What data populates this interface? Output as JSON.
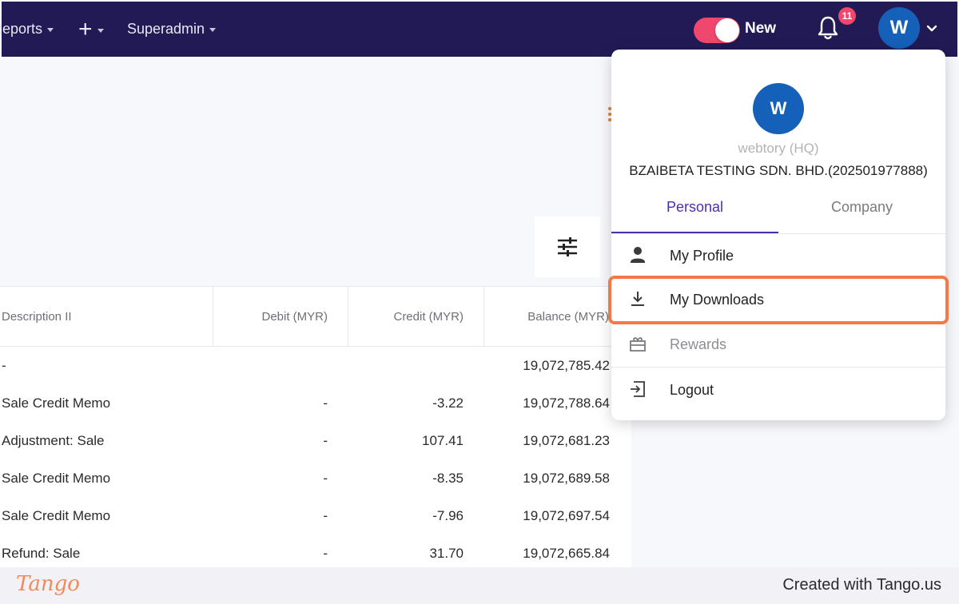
{
  "nav": {
    "items": [
      {
        "label": "Reports"
      },
      {
        "label": "+"
      },
      {
        "label": "Superadmin"
      }
    ],
    "toggle_label": "New",
    "notification_count": "11",
    "avatar_initial": "W"
  },
  "table": {
    "columns": [
      "Description II",
      "Debit (MYR)",
      "Credit (MYR)",
      "Balance (MYR)"
    ],
    "rows": [
      {
        "description": "-",
        "debit": "",
        "credit": "",
        "balance": "19,072,785.42"
      },
      {
        "description": "Sale Credit Memo",
        "debit": "-",
        "credit": "-3.22",
        "balance": "19,072,788.64"
      },
      {
        "description": "Adjustment: Sale",
        "debit": "-",
        "credit": "107.41",
        "balance": "19,072,681.23"
      },
      {
        "description": "Sale Credit Memo",
        "debit": "-",
        "credit": "-8.35",
        "balance": "19,072,689.58"
      },
      {
        "description": "Sale Credit Memo",
        "debit": "-",
        "credit": "-7.96",
        "balance": "19,072,697.54"
      },
      {
        "description": "Refund: Sale",
        "debit": "-",
        "credit": "31.70",
        "balance": "19,072,665.84"
      }
    ]
  },
  "menu": {
    "avatar_initial": "W",
    "user": "webtory (HQ)",
    "company": "BZAIBETA TESTING SDN. BHD.(202501977888)",
    "tabs": [
      {
        "label": "Personal"
      },
      {
        "label": "Company"
      }
    ],
    "items": [
      {
        "label": "My Profile",
        "icon": "person-icon"
      },
      {
        "label": "My Downloads",
        "icon": "download-icon"
      },
      {
        "label": "Rewards",
        "icon": "gift-icon"
      },
      {
        "label": "Logout",
        "icon": "logout-icon"
      }
    ]
  },
  "footer": {
    "logo": "Tango",
    "credit": "Created with Tango.us"
  },
  "colors": {
    "nav_bg": "#211a54",
    "accent_pink": "#f0476e",
    "avatar_blue": "#1560b8",
    "tab_active": "#4b2fa6",
    "highlight": "#f27a46"
  }
}
